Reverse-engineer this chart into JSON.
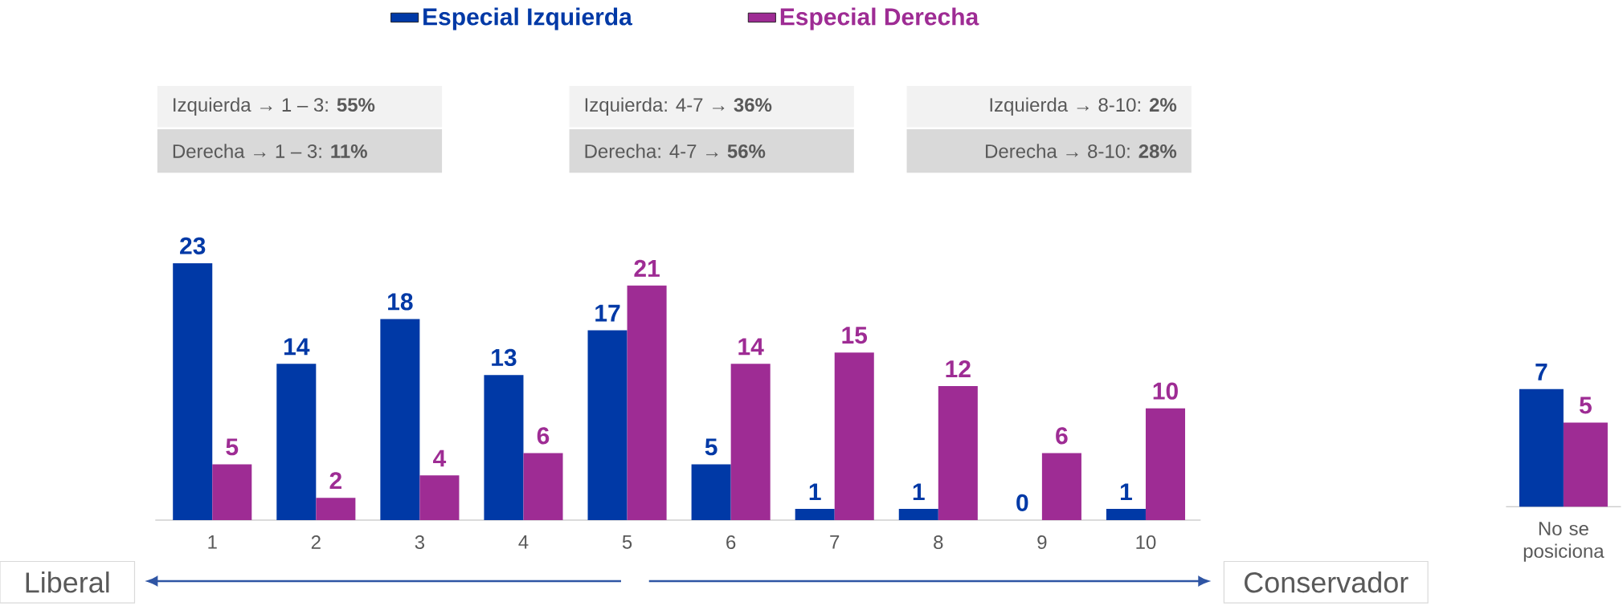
{
  "chart_data": [
    {
      "type": "bar",
      "categories": [
        "1",
        "2",
        "3",
        "4",
        "5",
        "6",
        "7",
        "8",
        "9",
        "10"
      ],
      "series": [
        {
          "name": "Especial Izquierda",
          "color": "#0039A6",
          "values": [
            23,
            14,
            18,
            13,
            17,
            5,
            1,
            1,
            0,
            1
          ]
        },
        {
          "name": "Especial Derecha",
          "color": "#9E2C94",
          "values": [
            5,
            2,
            4,
            6,
            21,
            14,
            15,
            12,
            6,
            10
          ]
        }
      ],
      "data_labels": true,
      "legend": "top",
      "annotations": [
        "Izquierda → 1 – 3: **55%**",
        "Derecha → 1 – 3: **11%**",
        "Izquierda: 4-7 → **36%**",
        "Derecha: 4-7 → **56%**",
        "Izquierda → 8-10: **2%**",
        "Derecha → 8-10: **28%**",
        "Liberal",
        "Conservador"
      ]
    },
    {
      "type": "bar",
      "categories": [
        "No se posiciona"
      ],
      "series": [
        {
          "color": "#0039A6",
          "values": [
            7
          ]
        },
        {
          "color": "#9E2C94",
          "values": [
            5
          ]
        }
      ],
      "data_labels": true
    }
  ]
}
